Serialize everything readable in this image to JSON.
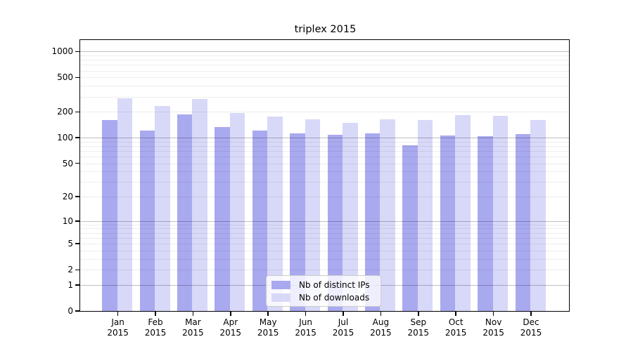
{
  "title": "triplex 2015",
  "legend": {
    "items": [
      {
        "label": "Nb of distinct IPs"
      },
      {
        "label": "Nb of downloads"
      }
    ]
  },
  "colors": {
    "distinct_ips_bar": "#a9a9ef",
    "downloads_bar": "#d8d8f8",
    "major_gridline": "rgba(0,0,0,0.25)",
    "minor_gridline": "rgba(0,0,0,0.07)",
    "axis": "#000000",
    "legend_border": "#cccccc"
  },
  "chart_data": {
    "type": "bar",
    "title": "triplex 2015",
    "categories": [
      {
        "month": "Jan",
        "year": "2015"
      },
      {
        "month": "Feb",
        "year": "2015"
      },
      {
        "month": "Mar",
        "year": "2015"
      },
      {
        "month": "Apr",
        "year": "2015"
      },
      {
        "month": "May",
        "year": "2015"
      },
      {
        "month": "Jun",
        "year": "2015"
      },
      {
        "month": "Jul",
        "year": "2015"
      },
      {
        "month": "Aug",
        "year": "2015"
      },
      {
        "month": "Sep",
        "year": "2015"
      },
      {
        "month": "Oct",
        "year": "2015"
      },
      {
        "month": "Nov",
        "year": "2015"
      },
      {
        "month": "Dec",
        "year": "2015"
      }
    ],
    "series": [
      {
        "name": "Nb of distinct IPs",
        "color": "#a9a9ef",
        "values": [
          162,
          120,
          188,
          134,
          122,
          113,
          108,
          113,
          81,
          106,
          104,
          110
        ]
      },
      {
        "name": "Nb of downloads",
        "color": "#d8d8f8",
        "values": [
          288,
          235,
          283,
          193,
          175,
          164,
          150,
          165,
          162,
          183,
          178,
          161
        ]
      }
    ],
    "yscale": "log10(value+1)",
    "y_ticks": [
      1000,
      500,
      200,
      100,
      50,
      20,
      10,
      5,
      2,
      1,
      0
    ],
    "ylim": [
      0,
      1350
    ],
    "xlabel": "",
    "ylabel": "",
    "grid": {
      "major_at": [
        1,
        10,
        100,
        1000
      ],
      "minor_per_decade": "2-9"
    },
    "legend_position": "lower-center-inside"
  }
}
